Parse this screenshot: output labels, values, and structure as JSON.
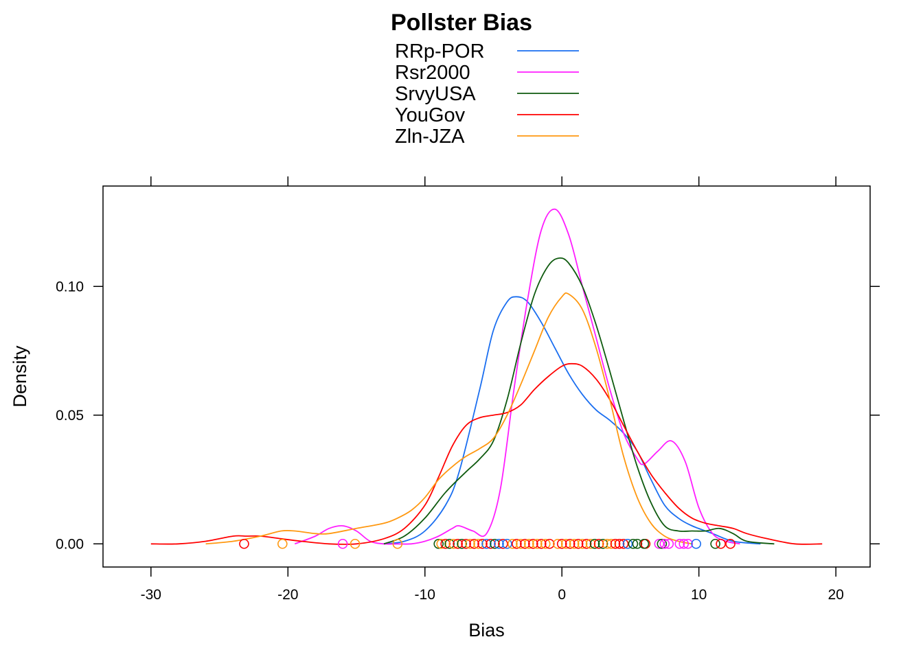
{
  "chart_data": {
    "type": "line",
    "title": "Pollster Bias",
    "xlabel": "Bias",
    "ylabel": "Density",
    "xlim": [
      -33.5,
      22.5
    ],
    "ylim": [
      -0.009,
      0.139
    ],
    "x_ticks": [
      -30,
      -20,
      -10,
      0,
      10,
      20
    ],
    "x_tick_labels": [
      "-30",
      "-20",
      "-10",
      "0",
      "10",
      "20"
    ],
    "y_ticks": [
      0.0,
      0.05,
      0.1
    ],
    "y_tick_labels": [
      "0.00",
      "0.05",
      "0.10"
    ],
    "grid": false,
    "legend_position": "top",
    "series": [
      {
        "name": "RRp-POR",
        "color": "#1a6ef0",
        "x": [
          -13.0,
          -11.5,
          -10.0,
          -8.5,
          -7.5,
          -6.0,
          -5.0,
          -4.0,
          -3.3,
          -2.5,
          -1.5,
          -0.5,
          0.5,
          1.5,
          2.5,
          3.5,
          4.5,
          5.5,
          6.5,
          7.5,
          8.5,
          9.5,
          11.0,
          12.5,
          14.5
        ],
        "y": [
          0.0,
          0.001,
          0.005,
          0.015,
          0.028,
          0.06,
          0.083,
          0.094,
          0.096,
          0.094,
          0.086,
          0.076,
          0.066,
          0.058,
          0.052,
          0.048,
          0.043,
          0.036,
          0.025,
          0.015,
          0.01,
          0.007,
          0.004,
          0.001,
          0.0
        ]
      },
      {
        "name": "Rsr2000",
        "color": "#ff1dff",
        "x": [
          -19.5,
          -18.0,
          -17.0,
          -16.0,
          -15.0,
          -14.0,
          -13.0,
          -12.0,
          -11.0,
          -10.0,
          -9.0,
          -8.0,
          -7.5,
          -6.5,
          -5.5,
          -4.5,
          -3.5,
          -2.5,
          -1.5,
          -0.5,
          0.5,
          1.5,
          2.5,
          3.5,
          4.5,
          5.5,
          6.0,
          7.0,
          8.0,
          9.0,
          10.0,
          11.0,
          12.0,
          13.0
        ],
        "y": [
          0.0,
          0.003,
          0.006,
          0.007,
          0.005,
          0.001,
          0.0,
          0.0,
          0.0,
          0.001,
          0.003,
          0.006,
          0.007,
          0.005,
          0.004,
          0.021,
          0.06,
          0.095,
          0.122,
          0.13,
          0.12,
          0.1,
          0.08,
          0.06,
          0.043,
          0.033,
          0.031,
          0.036,
          0.04,
          0.032,
          0.014,
          0.004,
          0.001,
          0.0
        ]
      },
      {
        "name": "SrvyUSA",
        "color": "#0e5a0e",
        "x": [
          -13.0,
          -11.5,
          -10.0,
          -8.5,
          -7.0,
          -6.0,
          -5.0,
          -4.0,
          -3.0,
          -2.0,
          -1.0,
          -0.2,
          0.5,
          1.5,
          2.5,
          3.5,
          4.5,
          5.5,
          6.5,
          7.5,
          8.5,
          9.5,
          10.5,
          11.5,
          12.5,
          13.5,
          15.5
        ],
        "y": [
          0.0,
          0.003,
          0.01,
          0.02,
          0.028,
          0.033,
          0.04,
          0.056,
          0.078,
          0.097,
          0.108,
          0.111,
          0.109,
          0.1,
          0.085,
          0.067,
          0.048,
          0.03,
          0.016,
          0.007,
          0.005,
          0.005,
          0.005,
          0.006,
          0.004,
          0.001,
          0.0
        ]
      },
      {
        "name": "YouGov",
        "color": "#ff0000",
        "x": [
          -30.0,
          -28.0,
          -26.0,
          -24.0,
          -23.0,
          -22.0,
          -20.5,
          -19.0,
          -17.0,
          -15.0,
          -13.0,
          -11.5,
          -10.0,
          -9.0,
          -8.0,
          -7.0,
          -6.0,
          -5.0,
          -4.0,
          -3.0,
          -2.0,
          -1.0,
          0.0,
          0.7,
          1.5,
          2.5,
          3.5,
          4.5,
          5.5,
          6.5,
          7.5,
          8.5,
          9.5,
          10.5,
          11.5,
          12.5,
          13.5,
          15.0,
          17.0,
          19.0
        ],
        "y": [
          0.0,
          0.0,
          0.001,
          0.003,
          0.003,
          0.003,
          0.002,
          0.001,
          0.0,
          0.0,
          0.002,
          0.006,
          0.015,
          0.026,
          0.038,
          0.046,
          0.049,
          0.05,
          0.051,
          0.054,
          0.06,
          0.065,
          0.069,
          0.07,
          0.069,
          0.064,
          0.056,
          0.046,
          0.036,
          0.027,
          0.02,
          0.014,
          0.01,
          0.008,
          0.007,
          0.006,
          0.004,
          0.002,
          0.0,
          0.0
        ]
      },
      {
        "name": "Zln-JZA",
        "color": "#ff9810",
        "x": [
          -26.0,
          -24.0,
          -22.0,
          -20.5,
          -19.5,
          -18.0,
          -17.0,
          -15.0,
          -13.0,
          -12.0,
          -11.0,
          -10.0,
          -9.0,
          -8.0,
          -7.0,
          -6.0,
          -5.0,
          -4.0,
          -3.0,
          -2.0,
          -1.0,
          0.0,
          0.5,
          1.5,
          2.5,
          3.5,
          4.5,
          5.5,
          6.5,
          7.5,
          8.5,
          9.5
        ],
        "y": [
          0.0,
          0.001,
          0.003,
          0.005,
          0.005,
          0.004,
          0.004,
          0.006,
          0.008,
          0.01,
          0.013,
          0.018,
          0.025,
          0.03,
          0.034,
          0.037,
          0.041,
          0.05,
          0.062,
          0.075,
          0.088,
          0.096,
          0.097,
          0.091,
          0.076,
          0.056,
          0.034,
          0.018,
          0.008,
          0.003,
          0.001,
          0.0
        ]
      }
    ],
    "rug": {
      "y": 0,
      "points": [
        {
          "series": "YouGov",
          "x": -23.2
        },
        {
          "series": "Zln-JZA",
          "x": -20.4
        },
        {
          "series": "Rsr2000",
          "x": -16.0
        },
        {
          "series": "Zln-JZA",
          "x": -15.1
        },
        {
          "series": "Zln-JZA",
          "x": -12.0
        },
        {
          "series": "SrvyUSA",
          "x": -9.0
        },
        {
          "series": "Zln-JZA",
          "x": -8.8
        },
        {
          "series": "YouGov",
          "x": -8.5
        },
        {
          "series": "SrvyUSA",
          "x": -8.2
        },
        {
          "series": "Zln-JZA",
          "x": -7.9
        },
        {
          "series": "YouGov",
          "x": -7.6
        },
        {
          "series": "SrvyUSA",
          "x": -7.3
        },
        {
          "series": "YouGov",
          "x": -7.0
        },
        {
          "series": "Zln-JZA",
          "x": -6.7
        },
        {
          "series": "YouGov",
          "x": -6.4
        },
        {
          "series": "Zln-JZA",
          "x": -6.1
        },
        {
          "series": "YouGov",
          "x": -5.8
        },
        {
          "series": "RRp-POR",
          "x": -5.5
        },
        {
          "series": "YouGov",
          "x": -5.2
        },
        {
          "series": "SrvyUSA",
          "x": -4.9
        },
        {
          "series": "RRp-POR",
          "x": -4.6
        },
        {
          "series": "YouGov",
          "x": -4.3
        },
        {
          "series": "RRp-POR",
          "x": -4.0
        },
        {
          "series": "Zln-JZA",
          "x": -3.6
        },
        {
          "series": "YouGov",
          "x": -3.3
        },
        {
          "series": "Zln-JZA",
          "x": -3.0
        },
        {
          "series": "YouGov",
          "x": -2.7
        },
        {
          "series": "Zln-JZA",
          "x": -2.4
        },
        {
          "series": "YouGov",
          "x": -2.1
        },
        {
          "series": "Zln-JZA",
          "x": -1.8
        },
        {
          "series": "YouGov",
          "x": -1.5
        },
        {
          "series": "Zln-JZA",
          "x": -1.2
        },
        {
          "series": "YouGov",
          "x": -0.9
        },
        {
          "series": "Zln-JZA",
          "x": -0.3
        },
        {
          "series": "YouGov",
          "x": 0.0
        },
        {
          "series": "Zln-JZA",
          "x": 0.3
        },
        {
          "series": "YouGov",
          "x": 0.6
        },
        {
          "series": "Zln-JZA",
          "x": 0.9
        },
        {
          "series": "YouGov",
          "x": 1.2
        },
        {
          "series": "Zln-JZA",
          "x": 1.5
        },
        {
          "series": "YouGov",
          "x": 1.8
        },
        {
          "series": "Zln-JZA",
          "x": 2.1
        },
        {
          "series": "SrvyUSA",
          "x": 2.4
        },
        {
          "series": "YouGov",
          "x": 2.7
        },
        {
          "series": "SrvyUSA",
          "x": 3.0
        },
        {
          "series": "Zln-JZA",
          "x": 3.3
        },
        {
          "series": "Zln-JZA",
          "x": 3.6
        },
        {
          "series": "YouGov",
          "x": 3.9
        },
        {
          "series": "YouGov",
          "x": 4.2
        },
        {
          "series": "YouGov",
          "x": 4.5
        },
        {
          "series": "RRp-POR",
          "x": 4.8
        },
        {
          "series": "SrvyUSA",
          "x": 5.2
        },
        {
          "series": "SrvyUSA",
          "x": 5.5
        },
        {
          "series": "YouGov",
          "x": 6.1
        },
        {
          "series": "SrvyUSA",
          "x": 6.0
        },
        {
          "series": "Rsr2000",
          "x": 7.1
        },
        {
          "series": "SrvyUSA",
          "x": 7.3
        },
        {
          "series": "Rsr2000",
          "x": 7.5
        },
        {
          "series": "Rsr2000",
          "x": 7.8
        },
        {
          "series": "Rsr2000",
          "x": 8.6
        },
        {
          "series": "Rsr2000",
          "x": 8.9
        },
        {
          "series": "Rsr2000",
          "x": 9.2
        },
        {
          "series": "RRp-POR",
          "x": 9.8
        },
        {
          "series": "SrvyUSA",
          "x": 11.2
        },
        {
          "series": "YouGov",
          "x": 11.6
        },
        {
          "series": "YouGov",
          "x": 12.3
        }
      ]
    }
  }
}
